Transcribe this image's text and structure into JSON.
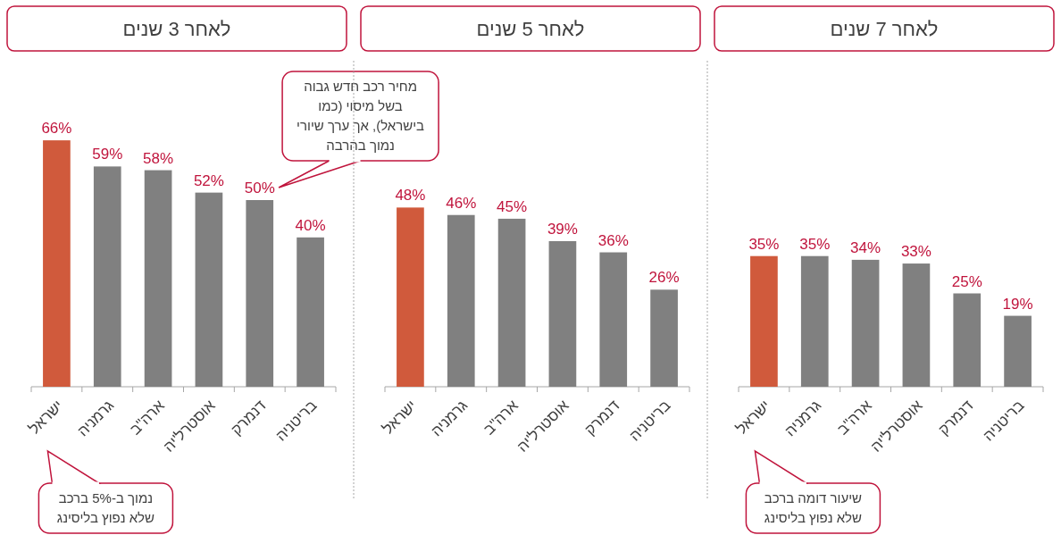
{
  "chart_data": [
    {
      "type": "bar",
      "title": "לאחר 3 שנים",
      "categories": [
        "ישראל",
        "גרמניה",
        "ארה\"ב",
        "אוסטרל'יה",
        "דנמרק",
        "בריטניה"
      ],
      "values": [
        66,
        59,
        58,
        52,
        50,
        40
      ],
      "value_labels": [
        "66%",
        "59%",
        "58%",
        "52%",
        "50%",
        "40%"
      ],
      "colors": [
        "#d05a3c",
        "#808080",
        "#808080",
        "#808080",
        "#808080",
        "#808080"
      ],
      "annotations": [
        "מחיר רכב חדש גבוה בשל מיסוי (כמו בישראל), אך ערך שיורי נמוך בהרבה",
        "נמוך ב-5% ברכב שלא נפוץ בליסינג"
      ]
    },
    {
      "type": "bar",
      "title": "לאחר 5 שנים",
      "categories": [
        "ישראל",
        "גרמניה",
        "ארה\"ב",
        "אוסטרל'יה",
        "דנמרק",
        "בריטניה"
      ],
      "values": [
        48,
        46,
        45,
        39,
        36,
        26
      ],
      "value_labels": [
        "48%",
        "46%",
        "45%",
        "39%",
        "36%",
        "26%"
      ],
      "colors": [
        "#d05a3c",
        "#808080",
        "#808080",
        "#808080",
        "#808080",
        "#808080"
      ]
    },
    {
      "type": "bar",
      "title": "לאחר 7 שנים",
      "categories": [
        "ישראל",
        "גרמניה",
        "ארה\"ב",
        "אוסטרל'יה",
        "דנמרק",
        "בריטניה"
      ],
      "values": [
        35,
        35,
        34,
        33,
        25,
        19
      ],
      "value_labels": [
        "35%",
        "35%",
        "34%",
        "33%",
        "25%",
        "19%"
      ],
      "colors": [
        "#d05a3c",
        "#808080",
        "#808080",
        "#808080",
        "#808080",
        "#808080"
      ],
      "annotations": [
        "שיעור דומה ברכב שלא נפוץ בליסינג"
      ]
    }
  ]
}
